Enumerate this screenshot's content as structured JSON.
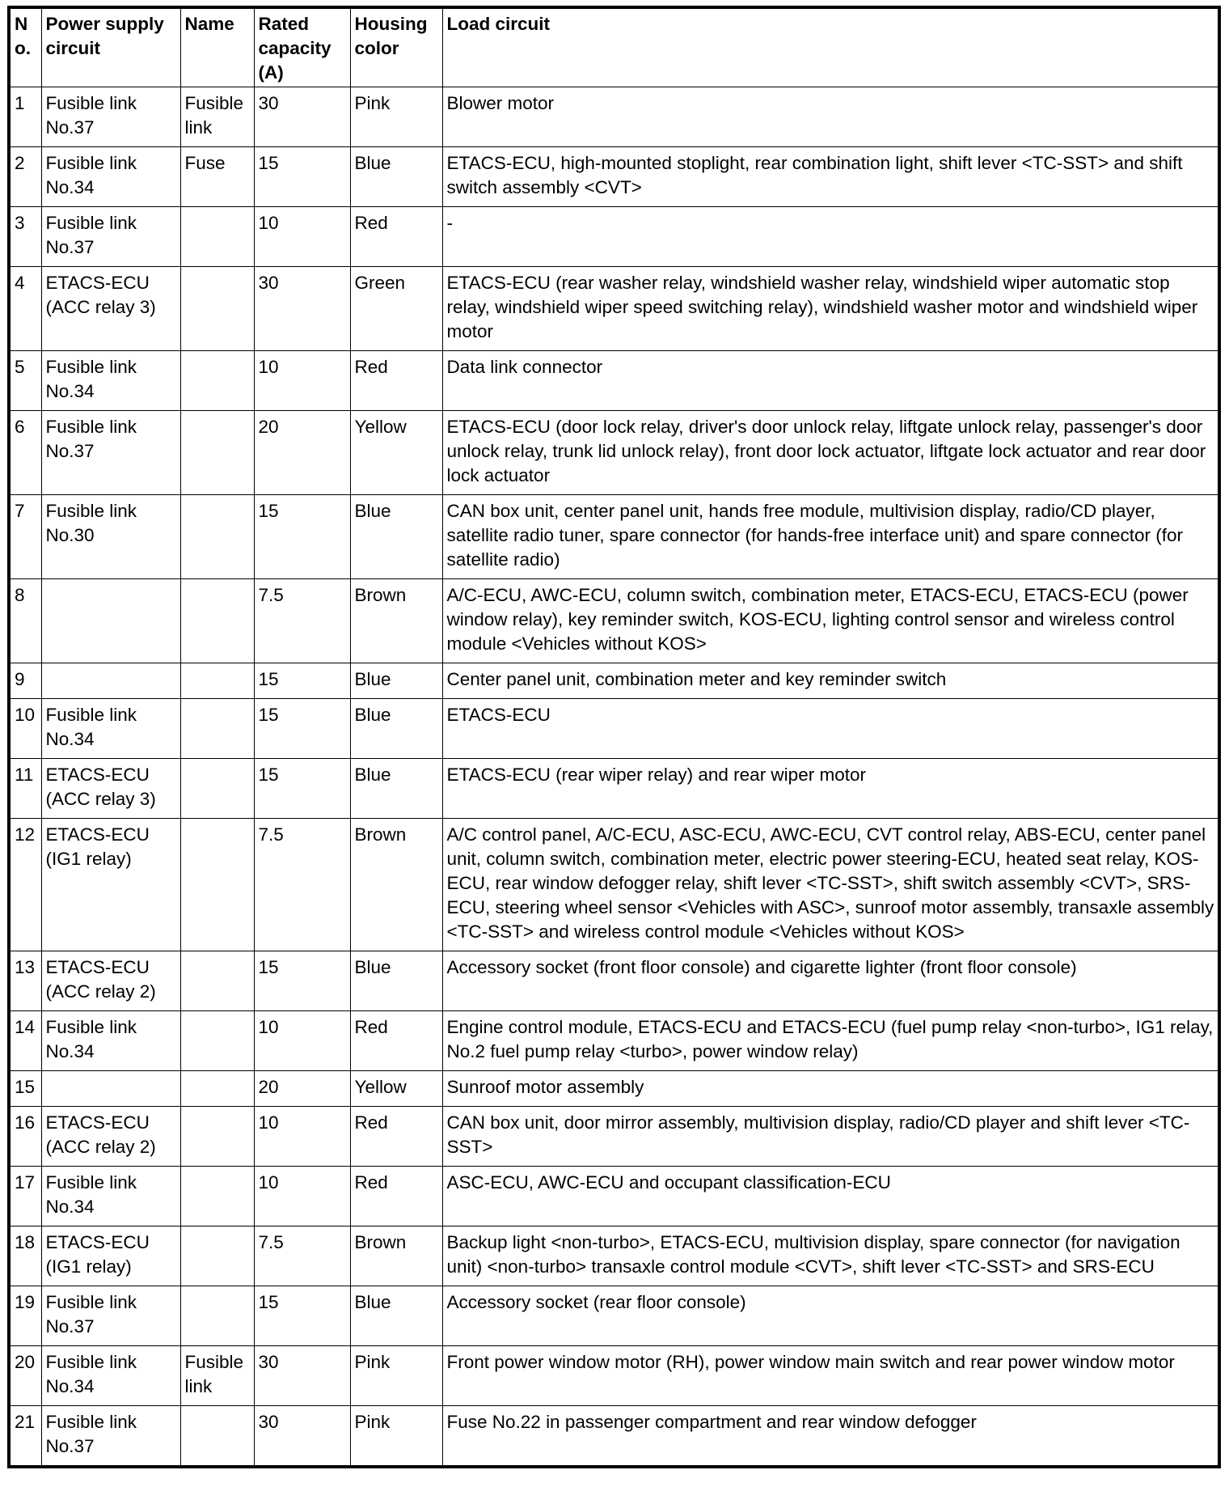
{
  "headers": {
    "no": "No.",
    "power": "Power supply circuit",
    "name": "Name",
    "rated": "Rated capacity (A)",
    "color": "Housing color",
    "load": "Load circuit"
  },
  "rows": [
    {
      "no": "1",
      "power": "Fusible link No.37",
      "name": "Fusible link",
      "rated": "30",
      "color": "Pink",
      "load": "Blower motor"
    },
    {
      "no": "2",
      "power": "Fusible link No.34",
      "name": "Fuse",
      "rated": "15",
      "color": "Blue",
      "load": "ETACS-ECU, high-mounted stoplight, rear combination light, shift lever <TC-SST> and shift switch assembly <CVT>"
    },
    {
      "no": "3",
      "power": "Fusible link No.37",
      "name": "",
      "rated": "10",
      "color": "Red",
      "load": "-"
    },
    {
      "no": "4",
      "power": "ETACS-ECU (ACC relay 3)",
      "name": "",
      "rated": "30",
      "color": "Green",
      "load": "ETACS-ECU (rear washer relay, windshield washer relay, windshield wiper automatic stop relay, windshield wiper speed switching relay), windshield washer motor and windshield wiper motor"
    },
    {
      "no": "5",
      "power": "Fusible link No.34",
      "name": "",
      "rated": "10",
      "color": "Red",
      "load": "Data link connector"
    },
    {
      "no": "6",
      "power": "Fusible link No.37",
      "name": "",
      "rated": "20",
      "color": "Yellow",
      "load": "ETACS-ECU (door lock relay, driver's door unlock relay, liftgate unlock relay, passenger's door unlock relay, trunk lid unlock relay), front door lock actuator, liftgate lock actuator and rear door lock actuator"
    },
    {
      "no": "7",
      "power": "Fusible link No.30",
      "name": "",
      "rated": "15",
      "color": "Blue",
      "load": "CAN box unit, center panel unit, hands free module, multivision display, radio/CD player, satellite radio tuner, spare connector (for hands-free interface unit) and spare connector (for satellite radio)"
    },
    {
      "no": "8",
      "power": "",
      "name": "",
      "rated": "7.5",
      "color": "Brown",
      "load": "A/C-ECU, AWC-ECU, column switch, combination meter, ETACS-ECU, ETACS-ECU (power window relay), key reminder switch, KOS-ECU, lighting control sensor and wireless control module <Vehicles without KOS>"
    },
    {
      "no": "9",
      "power": "",
      "name": "",
      "rated": "15",
      "color": "Blue",
      "load": "Center panel unit, combination meter and key reminder switch"
    },
    {
      "no": "10",
      "power": "Fusible link No.34",
      "name": "",
      "rated": "15",
      "color": "Blue",
      "load": "ETACS-ECU"
    },
    {
      "no": "11",
      "power": "ETACS-ECU (ACC relay 3)",
      "name": "",
      "rated": "15",
      "color": "Blue",
      "load": "ETACS-ECU (rear wiper relay) and rear wiper motor"
    },
    {
      "no": "12",
      "power": "ETACS-ECU (IG1 relay)",
      "name": "",
      "rated": "7.5",
      "color": "Brown",
      "load": "A/C control panel, A/C-ECU, ASC-ECU, AWC-ECU, CVT control relay, ABS-ECU, center panel unit, column switch, combination meter, electric power steering-ECU, heated seat relay, KOS-ECU, rear window defogger relay, shift lever <TC-SST>, shift switch assembly <CVT>, SRS-ECU, steering wheel sensor <Vehicles with ASC>, sunroof motor assembly, transaxle assembly <TC-SST> and wireless control module <Vehicles without KOS>"
    },
    {
      "no": "13",
      "power": "ETACS-ECU (ACC relay 2)",
      "name": "",
      "rated": "15",
      "color": "Blue",
      "load": "Accessory socket (front floor console) and cigarette lighter (front floor console)"
    },
    {
      "no": "14",
      "power": "Fusible link No.34",
      "name": "",
      "rated": "10",
      "color": "Red",
      "load": "Engine control module, ETACS-ECU and ETACS-ECU (fuel pump relay <non-turbo>, IG1 relay, No.2 fuel pump relay <turbo>, power window relay)"
    },
    {
      "no": "15",
      "power": "",
      "name": "",
      "rated": "20",
      "color": "Yellow",
      "load": "Sunroof motor assembly"
    },
    {
      "no": "16",
      "power": "ETACS-ECU (ACC relay 2)",
      "name": "",
      "rated": "10",
      "color": "Red",
      "load": "CAN box unit, door mirror assembly, multivision display, radio/CD player and shift lever <TC-SST>"
    },
    {
      "no": "17",
      "power": "Fusible link No.34",
      "name": "",
      "rated": "10",
      "color": "Red",
      "load": "ASC-ECU, AWC-ECU and occupant classification-ECU"
    },
    {
      "no": "18",
      "power": "ETACS-ECU (IG1 relay)",
      "name": "",
      "rated": "7.5",
      "color": "Brown",
      "load": "Backup light <non-turbo>, ETACS-ECU, multivision display, spare connector (for navigation unit) <non-turbo> transaxle control module <CVT>, shift lever <TC-SST> and SRS-ECU"
    },
    {
      "no": "19",
      "power": "Fusible link No.37",
      "name": "",
      "rated": "15",
      "color": "Blue",
      "load": "Accessory socket (rear floor console)"
    },
    {
      "no": "20",
      "power": "Fusible link No.34",
      "name": "Fusible link",
      "rated": "30",
      "color": "Pink",
      "load": "Front power window motor (RH), power window main switch and rear power window motor"
    },
    {
      "no": "21",
      "power": "Fusible link No.37",
      "name": "",
      "rated": "30",
      "color": "Pink",
      "load": "Fuse No.22 in passenger compartment and rear window defogger"
    }
  ]
}
